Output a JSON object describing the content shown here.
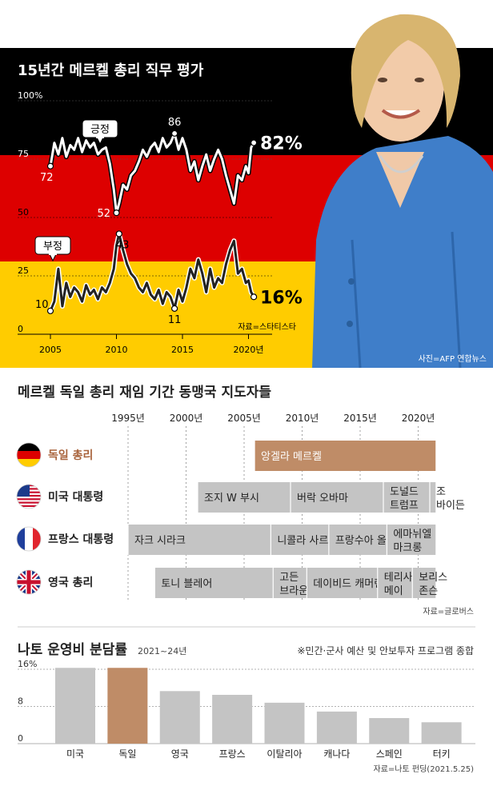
{
  "panel1": {
    "title": "15년간 메르켈 총리 직무 평가",
    "y_ticks": [
      "100%",
      "75",
      "50",
      "25",
      "0"
    ],
    "x_ticks": [
      "2005",
      "2010",
      "2015",
      "2020년"
    ],
    "source": "자료=스타티스타",
    "photo_credit": "사진=AFP 연합뉴스",
    "callouts": {
      "positive": "긍정",
      "negative": "부정"
    },
    "annotations": {
      "pos_start": "72",
      "pos_min": "52",
      "pos_max": "86",
      "pos_end": "82%",
      "neg_start": "10",
      "neg_mid": "43",
      "neg_min": "11",
      "neg_end": "16%"
    },
    "colors": {
      "black": "#000000",
      "red": "#dd0000",
      "gold": "#ffcc00",
      "jacket": "#3f7ec9"
    }
  },
  "chart_data": [
    {
      "type": "line",
      "title": "15년간 메르켈 총리 직무 평가",
      "ylim": [
        0,
        100
      ],
      "xlim": [
        2005,
        2021
      ],
      "series": [
        {
          "name": "긍정",
          "x": [
            2005.0,
            2005.3,
            2005.6,
            2005.9,
            2006.2,
            2006.5,
            2006.8,
            2007.1,
            2007.4,
            2007.7,
            2008.0,
            2008.3,
            2008.6,
            2008.9,
            2009.2,
            2009.5,
            2009.8,
            2010.0,
            2010.2,
            2010.5,
            2010.8,
            2011.1,
            2011.4,
            2011.7,
            2012.0,
            2012.3,
            2012.6,
            2012.9,
            2013.2,
            2013.5,
            2013.8,
            2014.1,
            2014.4,
            2014.7,
            2015.0,
            2015.3,
            2015.6,
            2015.9,
            2016.2,
            2016.5,
            2016.8,
            2017.1,
            2017.4,
            2017.7,
            2018.0,
            2018.3,
            2018.6,
            2018.9,
            2019.2,
            2019.5,
            2019.8,
            2020.0,
            2020.2,
            2020.4
          ],
          "values": [
            72,
            82,
            77,
            84,
            76,
            81,
            79,
            84,
            78,
            83,
            80,
            82,
            77,
            79,
            80,
            73,
            62,
            52,
            56,
            64,
            62,
            68,
            70,
            74,
            79,
            76,
            80,
            82,
            78,
            84,
            80,
            82,
            86,
            79,
            84,
            79,
            70,
            74,
            66,
            72,
            77,
            70,
            75,
            79,
            75,
            68,
            62,
            56,
            68,
            66,
            72,
            69,
            80,
            82
          ]
        },
        {
          "name": "부정",
          "x": [
            2005.0,
            2005.3,
            2005.6,
            2005.9,
            2006.2,
            2006.5,
            2006.8,
            2007.1,
            2007.4,
            2007.7,
            2008.0,
            2008.3,
            2008.6,
            2008.9,
            2009.2,
            2009.5,
            2009.8,
            2010.0,
            2010.2,
            2010.5,
            2010.8,
            2011.1,
            2011.4,
            2011.7,
            2012.0,
            2012.3,
            2012.6,
            2012.9,
            2013.2,
            2013.5,
            2013.8,
            2014.1,
            2014.4,
            2014.7,
            2015.0,
            2015.3,
            2015.6,
            2015.9,
            2016.2,
            2016.5,
            2016.8,
            2017.1,
            2017.4,
            2017.7,
            2018.0,
            2018.3,
            2018.6,
            2018.9,
            2019.2,
            2019.5,
            2019.8,
            2020.0,
            2020.2,
            2020.4
          ],
          "values": [
            10,
            14,
            28,
            12,
            22,
            16,
            20,
            18,
            14,
            21,
            17,
            19,
            15,
            20,
            18,
            22,
            28,
            38,
            43,
            36,
            30,
            26,
            24,
            20,
            18,
            22,
            17,
            15,
            19,
            13,
            18,
            16,
            11,
            19,
            14,
            20,
            28,
            24,
            32,
            26,
            18,
            28,
            20,
            24,
            22,
            30,
            36,
            40,
            26,
            28,
            22,
            23,
            18,
            16
          ]
        }
      ]
    },
    {
      "type": "bar",
      "title": "메르켈 독일 총리 재임 기간 동맹국 지도자들",
      "x_ticks": [
        "1995년",
        "2000년",
        "2005년",
        "2010년",
        "2015년",
        "2020년"
      ],
      "xlim": [
        1995,
        2021
      ],
      "rows": [
        {
          "label": "독일 총리",
          "flag": "germany-flag",
          "highlight": true,
          "terms": [
            {
              "name": "앙겔라 메르켈",
              "start": 2005.9,
              "end": 2021.5
            }
          ]
        },
        {
          "label": "미국 대통령",
          "flag": "usa-flag",
          "highlight": false,
          "terms": [
            {
              "name": "조지 W 부시",
              "start": 2001.0,
              "end": 2009.0
            },
            {
              "name": "버락 오바마",
              "start": 2009.0,
              "end": 2017.0
            },
            {
              "name": "도널드 트럼프",
              "start": 2017.0,
              "end": 2021.0
            },
            {
              "name": "조 바이든",
              "start": 2021.0,
              "end": 2021.5
            }
          ]
        },
        {
          "label": "프랑스 대통령",
          "flag": "france-flag",
          "highlight": false,
          "terms": [
            {
              "name": "자크 시라크",
              "start": 1995.0,
              "end": 2007.3
            },
            {
              "name": "니콜라 사르코지",
              "start": 2007.3,
              "end": 2012.3
            },
            {
              "name": "프랑수아 올랑드",
              "start": 2012.3,
              "end": 2017.3
            },
            {
              "name": "에마뉘엘 마크롱",
              "start": 2017.3,
              "end": 2021.5
            }
          ]
        },
        {
          "label": "영국 총리",
          "flag": "uk-flag",
          "highlight": false,
          "terms": [
            {
              "name": "토니 블레어",
              "start": 1997.3,
              "end": 2007.5
            },
            {
              "name": "고든 브라운",
              "start": 2007.5,
              "end": 2010.4
            },
            {
              "name": "데이비드 캐머런",
              "start": 2010.4,
              "end": 2016.5
            },
            {
              "name": "테리사 메이",
              "start": 2016.5,
              "end": 2019.5
            },
            {
              "name": "보리스 존슨",
              "start": 2019.5,
              "end": 2021.5
            }
          ]
        }
      ],
      "source": "자료=글로버스"
    },
    {
      "type": "bar",
      "title": "나토 운영비 분담률",
      "subtitle": "2021~24년",
      "note": "※민간·군사 예산 및 안보투자 프로그램 종합",
      "categories": [
        "미국",
        "독일",
        "영국",
        "프랑스",
        "이탈리아",
        "캐나다",
        "스페인",
        "터키"
      ],
      "values": [
        16.3,
        16.3,
        11.3,
        10.5,
        8.8,
        6.9,
        5.5,
        4.6
      ],
      "highlight_index": 1,
      "ylim": [
        0,
        16
      ],
      "y_ticks": [
        "16%",
        "8",
        "0"
      ],
      "source": "자료=나토 펀딩(2021.5.25)"
    }
  ],
  "colors": {
    "bar_gray": "#c4c4c4",
    "bar_highlight": "#bf8c67",
    "highlight_text": "#a9643d",
    "axis_gray": "#888888"
  }
}
